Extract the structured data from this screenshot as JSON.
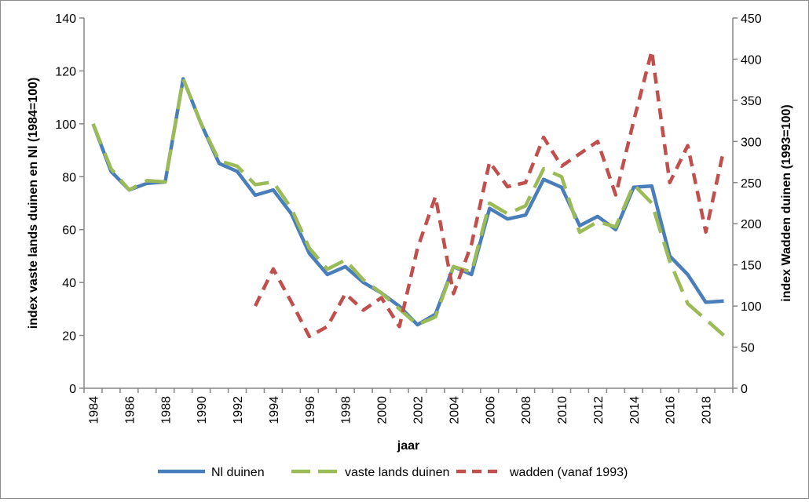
{
  "chart_data": {
    "type": "line",
    "title": "",
    "xlabel": "jaar",
    "ylabel_left": "index vaste lands duinen en Nl (1984=100)",
    "ylabel_right": "index Wadden duinen (1993=100)",
    "ylim_left": [
      0,
      140
    ],
    "yticks_left": [
      0,
      20,
      40,
      60,
      80,
      100,
      120,
      140
    ],
    "ylim_right": [
      0,
      450
    ],
    "yticks_right": [
      0,
      50,
      100,
      150,
      200,
      250,
      300,
      350,
      400,
      450
    ],
    "x": [
      1984,
      1985,
      1986,
      1987,
      1988,
      1989,
      1990,
      1991,
      1992,
      1993,
      1994,
      1995,
      1996,
      1997,
      1998,
      1999,
      2000,
      2001,
      2002,
      2003,
      2004,
      2005,
      2006,
      2007,
      2008,
      2009,
      2010,
      2011,
      2012,
      2013,
      2014,
      2015,
      2016,
      2017,
      2018,
      2019
    ],
    "xtick_labels": [
      "1984",
      "1986",
      "1988",
      "1990",
      "1992",
      "1994",
      "1996",
      "1998",
      "2000",
      "2002",
      "2004",
      "2006",
      "2008",
      "2010",
      "2012",
      "2014",
      "2016",
      "2018"
    ],
    "grid": false,
    "legend_position": "bottom",
    "series": [
      {
        "name": "Nl duinen",
        "axis": "left",
        "color": "#4a7ebb",
        "style": "solid",
        "values": [
          100,
          82,
          75,
          77.5,
          78,
          117,
          100,
          85,
          82,
          73,
          75,
          66,
          51,
          43,
          46,
          40,
          36,
          31,
          24,
          28,
          46,
          43,
          68,
          64,
          65.5,
          79,
          76,
          61.5,
          65,
          60,
          76,
          76.5,
          50,
          43,
          32.5,
          33
        ]
      },
      {
        "name": "vaste lands duinen",
        "axis": "left",
        "color": "#9bbb59",
        "style": "long-dash",
        "values": [
          100,
          83,
          75,
          78.5,
          78,
          117,
          100,
          86,
          84,
          77,
          78,
          68,
          53,
          45,
          48.5,
          41,
          36,
          30,
          24,
          27,
          46,
          44,
          70,
          66,
          69,
          83,
          80,
          59,
          63,
          61,
          77,
          70,
          48,
          32,
          26,
          20
        ]
      },
      {
        "name": "wadden (vanaf 1993)",
        "axis": "right",
        "color": "#c0504d",
        "style": "dash",
        "values": [
          null,
          null,
          null,
          null,
          null,
          null,
          null,
          null,
          null,
          100,
          145,
          105,
          63,
          75,
          115,
          95,
          110,
          75,
          170,
          233,
          115,
          175,
          275,
          245,
          250,
          305,
          270,
          285,
          300,
          235,
          325,
          410,
          250,
          295,
          190,
          290
        ]
      }
    ]
  }
}
